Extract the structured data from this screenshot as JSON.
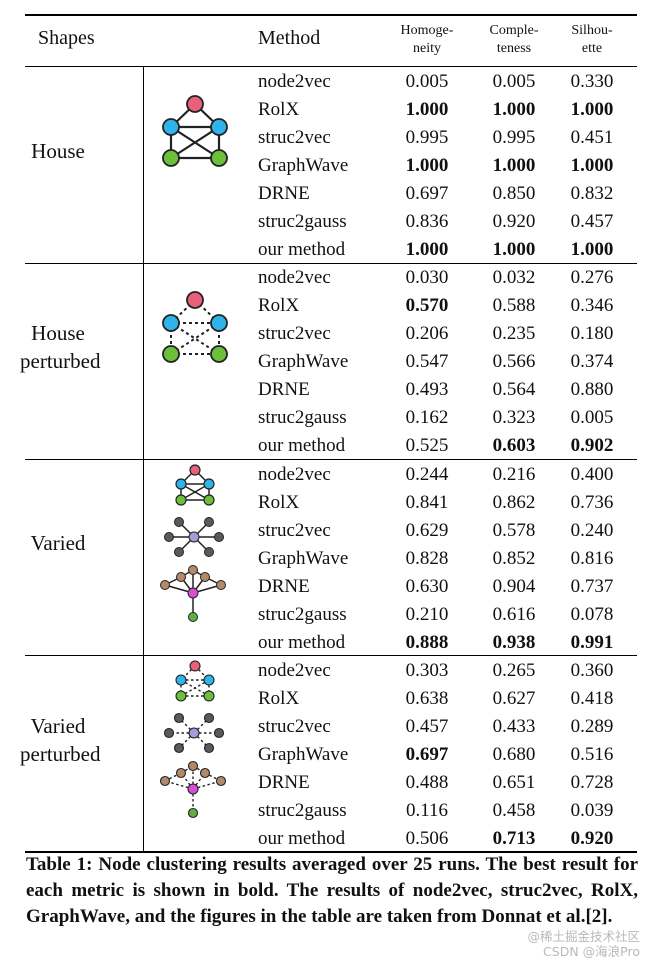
{
  "header": {
    "shapes": "Shapes",
    "method": "Method",
    "metrics": [
      {
        "line1": "Homoge-",
        "line2": "neity"
      },
      {
        "line1": "Comple-",
        "line2": "teness"
      },
      {
        "line1": "Silhou-",
        "line2": "ette"
      }
    ]
  },
  "groups": [
    {
      "label_lines": [
        "House"
      ],
      "icon": "house-graph-icon",
      "rows": [
        {
          "method": "node2vec",
          "values": [
            "0.005",
            "0.005",
            "0.330"
          ],
          "bold": [
            false,
            false,
            false
          ]
        },
        {
          "method": "RolX",
          "values": [
            "1.000",
            "1.000",
            "1.000"
          ],
          "bold": [
            true,
            true,
            true
          ]
        },
        {
          "method": "struc2vec",
          "values": [
            "0.995",
            "0.995",
            "0.451"
          ],
          "bold": [
            false,
            false,
            false
          ]
        },
        {
          "method": "GraphWave",
          "values": [
            "1.000",
            "1.000",
            "1.000"
          ],
          "bold": [
            true,
            true,
            true
          ]
        },
        {
          "method": "DRNE",
          "values": [
            "0.697",
            "0.850",
            "0.832"
          ],
          "bold": [
            false,
            false,
            false
          ]
        },
        {
          "method": "struc2gauss",
          "values": [
            "0.836",
            "0.920",
            "0.457"
          ],
          "bold": [
            false,
            false,
            false
          ]
        },
        {
          "method": "our method",
          "values": [
            "1.000",
            "1.000",
            "1.000"
          ],
          "bold": [
            true,
            true,
            true
          ]
        }
      ]
    },
    {
      "label_lines": [
        "House",
        "perturbed"
      ],
      "icon": "house-perturbed-graph-icon",
      "rows": [
        {
          "method": "node2vec",
          "values": [
            "0.030",
            "0.032",
            "0.276"
          ],
          "bold": [
            false,
            false,
            false
          ]
        },
        {
          "method": "RolX",
          "values": [
            "0.570",
            "0.588",
            "0.346"
          ],
          "bold": [
            true,
            false,
            false
          ]
        },
        {
          "method": "struc2vec",
          "values": [
            "0.206",
            "0.235",
            "0.180"
          ],
          "bold": [
            false,
            false,
            false
          ]
        },
        {
          "method": "GraphWave",
          "values": [
            "0.547",
            "0.566",
            "0.374"
          ],
          "bold": [
            false,
            false,
            false
          ]
        },
        {
          "method": "DRNE",
          "values": [
            "0.493",
            "0.564",
            "0.880"
          ],
          "bold": [
            false,
            false,
            false
          ]
        },
        {
          "method": "struc2gauss",
          "values": [
            "0.162",
            "0.323",
            "0.005"
          ],
          "bold": [
            false,
            false,
            false
          ]
        },
        {
          "method": "our method",
          "values": [
            "0.525",
            "0.603",
            "0.902"
          ],
          "bold": [
            false,
            true,
            true
          ]
        }
      ]
    },
    {
      "label_lines": [
        "Varied"
      ],
      "icon": "varied-graphs-icon",
      "rows": [
        {
          "method": "node2vec",
          "values": [
            "0.244",
            "0.216",
            "0.400"
          ],
          "bold": [
            false,
            false,
            false
          ]
        },
        {
          "method": "RolX",
          "values": [
            "0.841",
            "0.862",
            "0.736"
          ],
          "bold": [
            false,
            false,
            false
          ]
        },
        {
          "method": "struc2vec",
          "values": [
            "0.629",
            "0.578",
            "0.240"
          ],
          "bold": [
            false,
            false,
            false
          ]
        },
        {
          "method": "GraphWave",
          "values": [
            "0.828",
            "0.852",
            "0.816"
          ],
          "bold": [
            false,
            false,
            false
          ]
        },
        {
          "method": "DRNE",
          "values": [
            "0.630",
            "0.904",
            "0.737"
          ],
          "bold": [
            false,
            false,
            false
          ]
        },
        {
          "method": "struc2gauss",
          "values": [
            "0.210",
            "0.616",
            "0.078"
          ],
          "bold": [
            false,
            false,
            false
          ]
        },
        {
          "method": "our method",
          "values": [
            "0.888",
            "0.938",
            "0.991"
          ],
          "bold": [
            true,
            true,
            true
          ]
        }
      ]
    },
    {
      "label_lines": [
        "Varied",
        "perturbed"
      ],
      "icon": "varied-perturbed-graphs-icon",
      "rows": [
        {
          "method": "node2vec",
          "values": [
            "0.303",
            "0.265",
            "0.360"
          ],
          "bold": [
            false,
            false,
            false
          ]
        },
        {
          "method": "RolX",
          "values": [
            "0.638",
            "0.627",
            "0.418"
          ],
          "bold": [
            false,
            false,
            false
          ]
        },
        {
          "method": "struc2vec",
          "values": [
            "0.457",
            "0.433",
            "0.289"
          ],
          "bold": [
            false,
            false,
            false
          ]
        },
        {
          "method": "GraphWave",
          "values": [
            "0.697",
            "0.680",
            "0.516"
          ],
          "bold": [
            true,
            false,
            false
          ]
        },
        {
          "method": "DRNE",
          "values": [
            "0.488",
            "0.651",
            "0.728"
          ],
          "bold": [
            false,
            false,
            false
          ]
        },
        {
          "method": "struc2gauss",
          "values": [
            "0.116",
            "0.458",
            "0.039"
          ],
          "bold": [
            false,
            false,
            false
          ]
        },
        {
          "method": "our method",
          "values": [
            "0.506",
            "0.713",
            "0.920"
          ],
          "bold": [
            false,
            true,
            true
          ]
        }
      ]
    }
  ],
  "caption": "Table 1: Node clustering results averaged over 25 runs. The best result for each metric is shown in bold. The results of node2vec, struc2vec, RolX, GraphWave, and the figures in the table are taken from Donnat et al.[2].",
  "watermark": {
    "line1": "@稀土掘金技术社区",
    "line2": "CSDN @海浪Pro"
  },
  "colors": {
    "pink": "#e8607a",
    "cyan": "#2fb4ea",
    "green": "#6cbf3a",
    "gray": "#5a5a5a",
    "lavender": "#a99ad8",
    "tan": "#b08a6a",
    "magenta": "#d64fd6",
    "leaf_green": "#5fb044"
  }
}
